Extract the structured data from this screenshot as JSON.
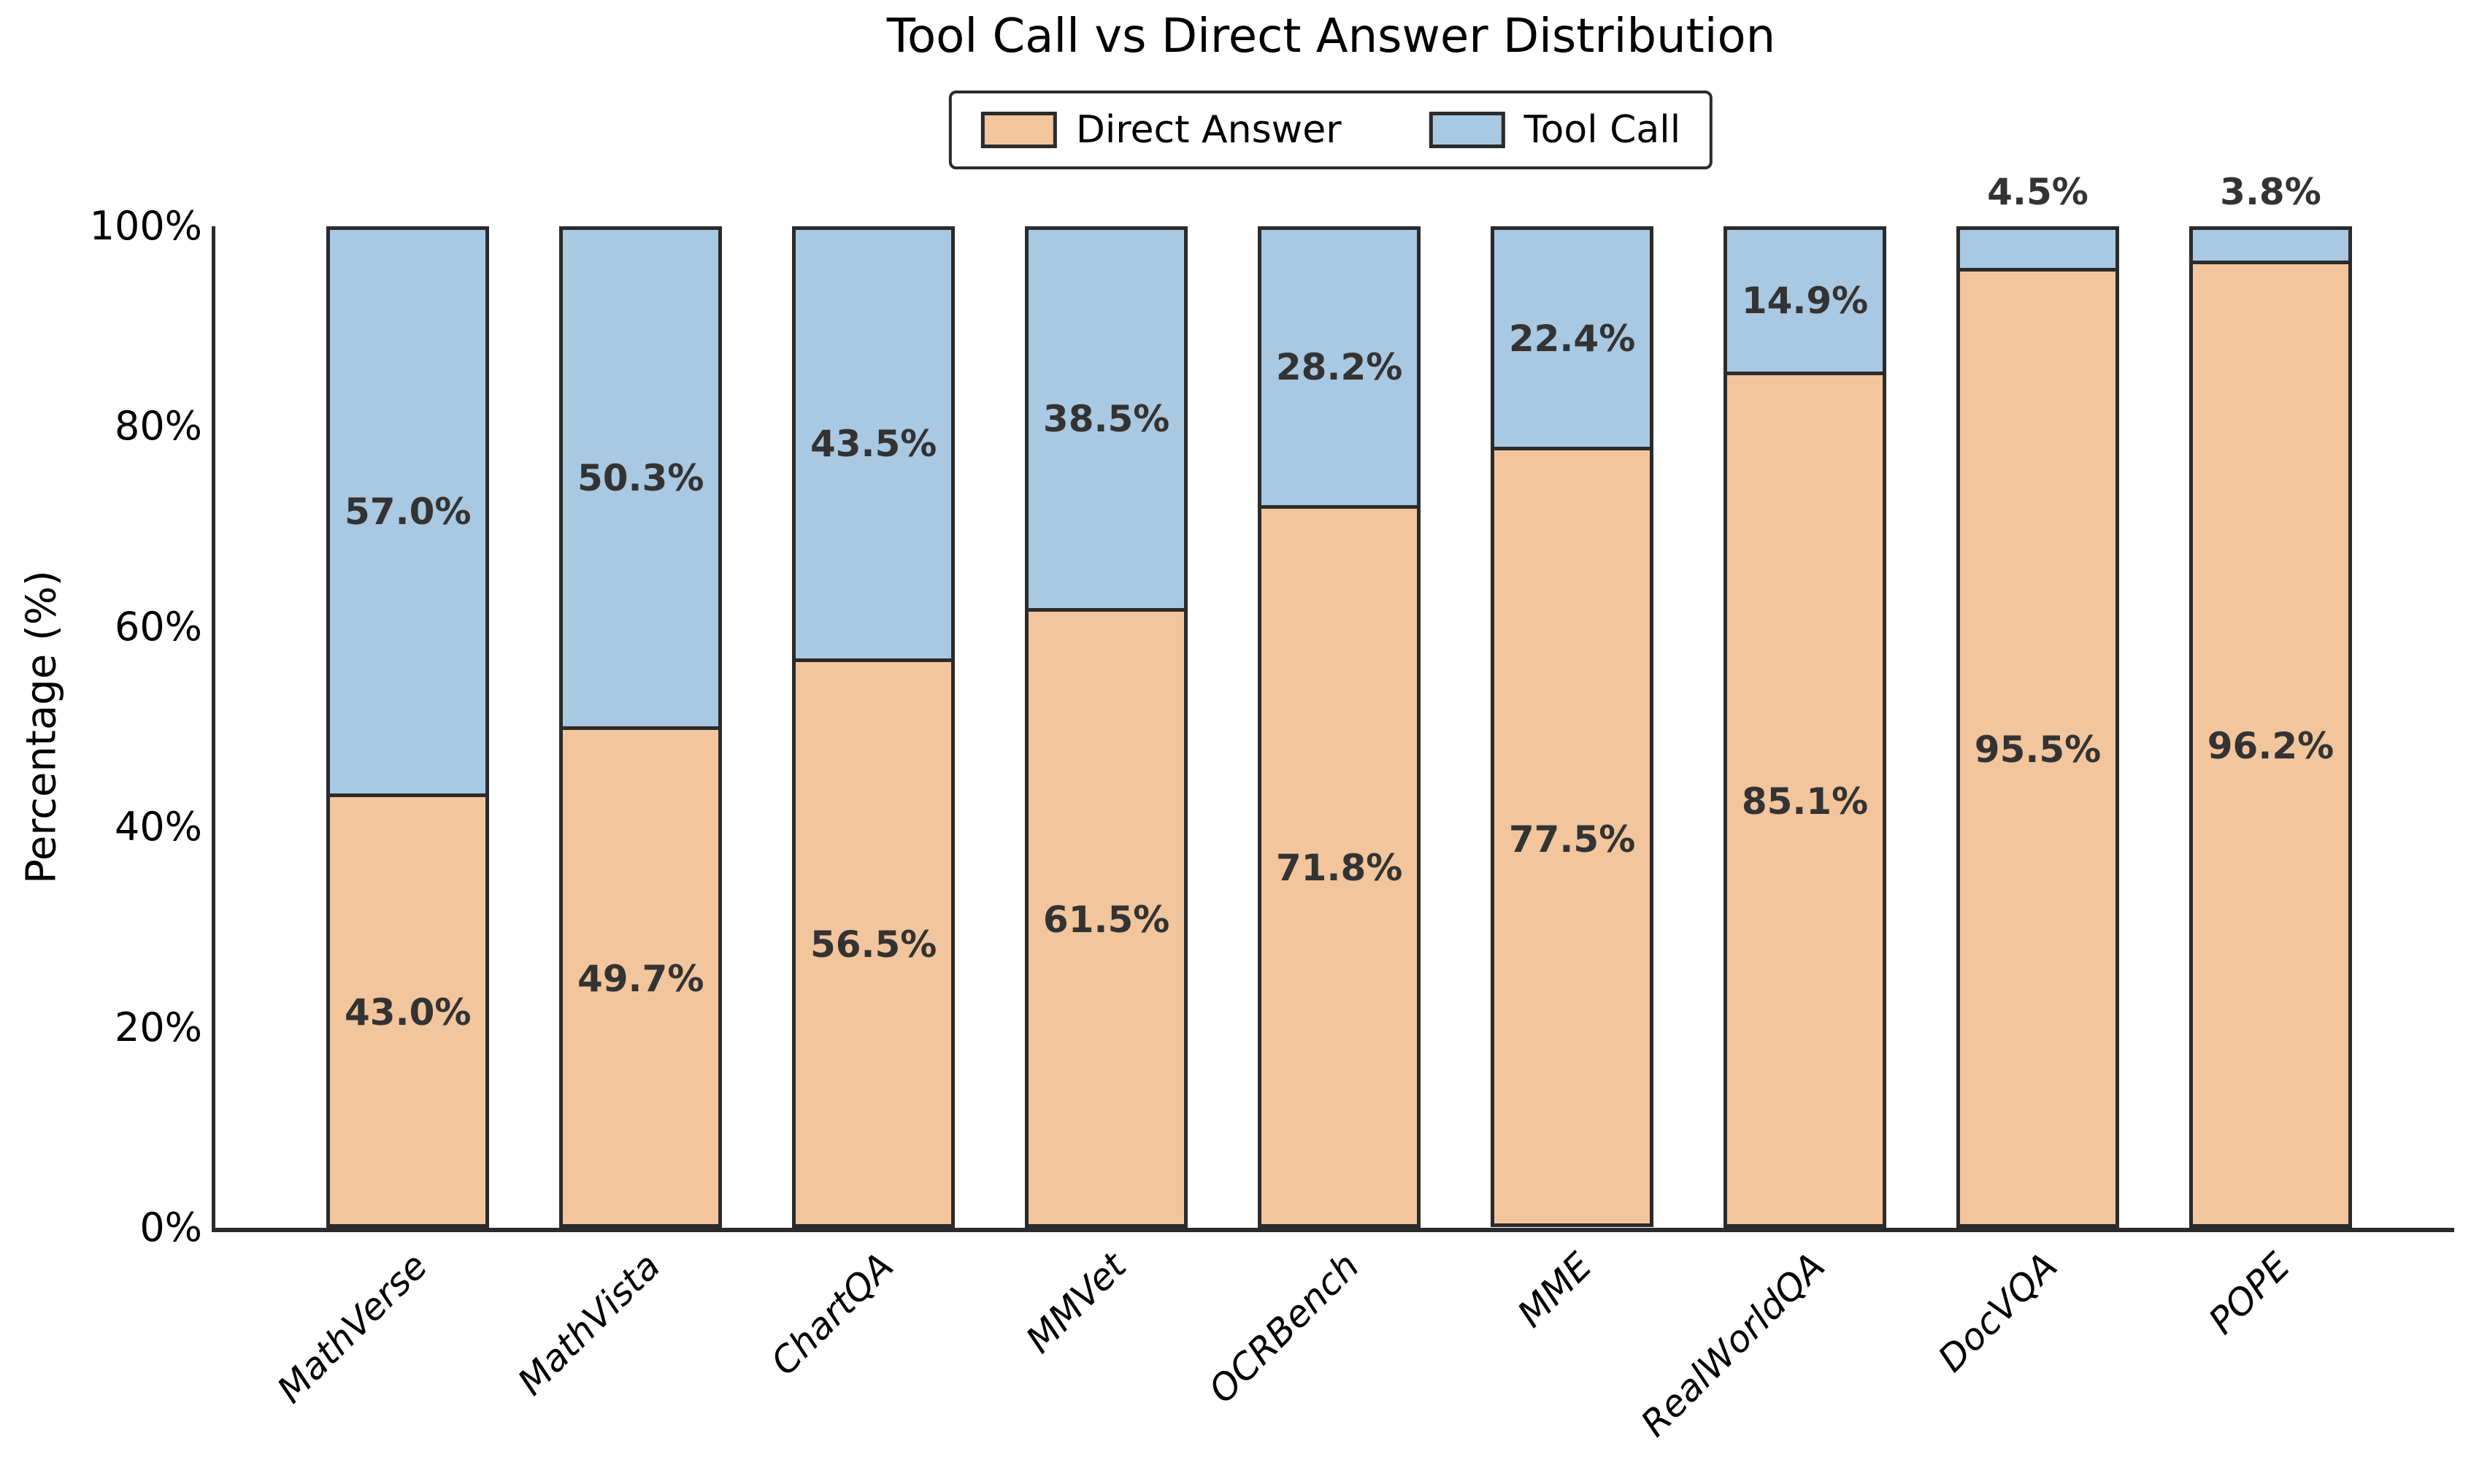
{
  "figure": {
    "title": "Tool Call vs Direct Answer Distribution"
  },
  "chart_data": {
    "type": "bar",
    "stacked": true,
    "title": "Tool Call vs Direct Answer Distribution",
    "xlabel": "",
    "ylabel": "Percentage (%)",
    "ylim": [
      0,
      100
    ],
    "grid": false,
    "legend_position": "top-center",
    "edge_color": "#2B2B2B",
    "value_label_color": "#333333",
    "outside_label_threshold": 8,
    "yticks": [
      {
        "value": 0,
        "label": "0%"
      },
      {
        "value": 20,
        "label": "20%"
      },
      {
        "value": 40,
        "label": "40%"
      },
      {
        "value": 60,
        "label": "60%"
      },
      {
        "value": 80,
        "label": "80%"
      },
      {
        "value": 100,
        "label": "100%"
      }
    ],
    "categories": [
      "MathVerse",
      "MathVista",
      "ChartQA",
      "MMVet",
      "OCRBench",
      "MME",
      "RealWorldQA",
      "DocVQA",
      "POPE"
    ],
    "series": [
      {
        "name": "Direct Answer",
        "color": "#F2C59C",
        "values": [
          43.0,
          49.7,
          56.5,
          61.5,
          71.8,
          77.5,
          85.1,
          95.5,
          96.2
        ],
        "labels": [
          "43.0%",
          "49.7%",
          "56.5%",
          "61.5%",
          "71.8%",
          "77.5%",
          "85.1%",
          "95.5%",
          "96.2%"
        ]
      },
      {
        "name": "Tool Call",
        "color": "#A9C8E1",
        "values": [
          57.0,
          50.3,
          43.5,
          38.5,
          28.2,
          22.4,
          14.9,
          4.5,
          3.8
        ],
        "labels": [
          "57.0%",
          "50.3%",
          "43.5%",
          "38.5%",
          "28.2%",
          "22.4%",
          "14.9%",
          "4.5%",
          "3.8%"
        ]
      }
    ]
  }
}
